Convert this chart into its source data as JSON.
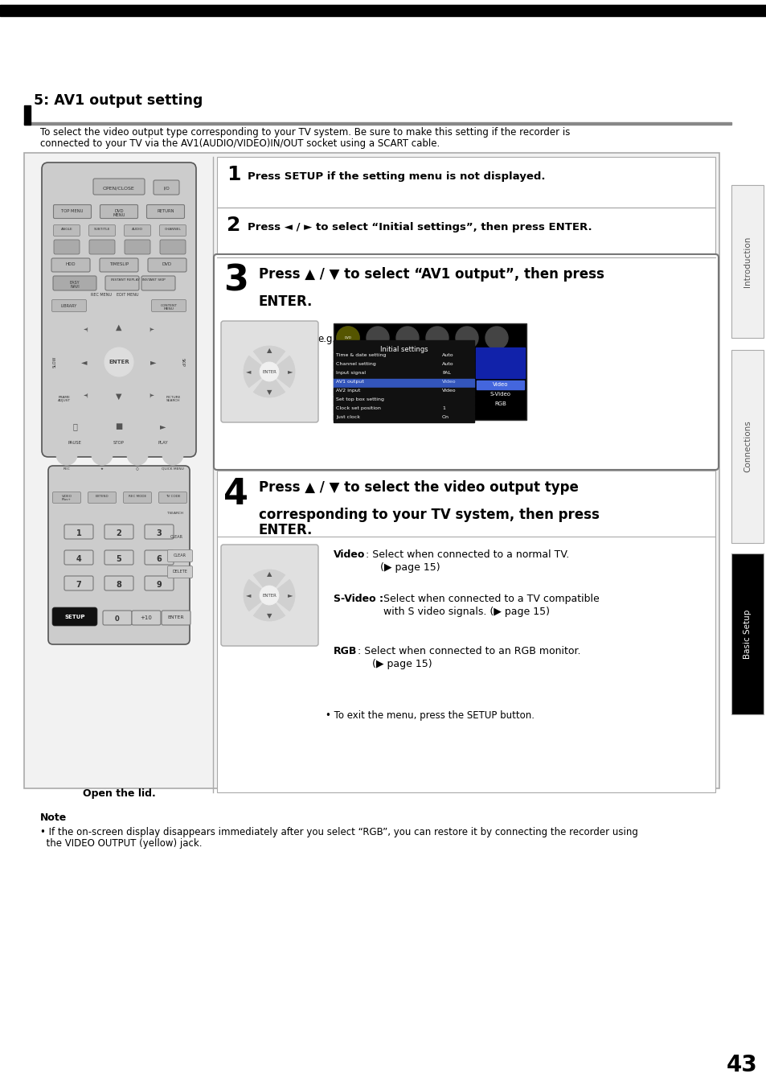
{
  "page_number": "43",
  "section_title": "5: AV1 output setting",
  "intro_text_1": "To select the video output type corresponding to your TV system. Be sure to make this setting if the recorder is",
  "intro_text_2": "connected to your TV via the AV1(AUDIO/VIDEO)IN/OUT socket using a SCART cable.",
  "step1_text": "Press SETUP if the setting menu is not displayed.",
  "step2_text": "Press ◄ / ► to select “Initial settings”, then press ENTER.",
  "step3_line1": "Press ▲ / ▼ to select “AV1 output”, then press",
  "step3_line2": "ENTER.",
  "step4_line1": "Press ▲ / ▼ to select the video output type",
  "step4_line2": "corresponding to your TV system, then press",
  "step4_line3": "ENTER.",
  "screen_rows": [
    [
      "Time & date setting",
      "Auto",
      false
    ],
    [
      "Channel setting",
      "Auto",
      false
    ],
    [
      "Input signal",
      "PAL",
      false
    ],
    [
      "AV1 output",
      "Video",
      true
    ],
    [
      "AV2 input",
      "Video",
      false
    ],
    [
      "Set top box setting",
      "",
      false
    ],
    [
      "Clock set position",
      "1",
      false
    ],
    [
      "Just clock",
      "On",
      false
    ]
  ],
  "screen_right": [
    "Video",
    "S-Video",
    "RGB"
  ],
  "video_desc1": ": Select when connected to a normal TV.",
  "video_desc2": "(▶ page 15)",
  "svideo_desc1": "Select when connected to a TV compatible",
  "svideo_desc2": "with S video signals. (▶ page 15)",
  "rgb_desc1": ": Select when connected to an RGB monitor.",
  "rgb_desc2": "(▶ page 15)",
  "exit_text": "• To exit the menu, press the SETUP button.",
  "open_lid": "Open the lid.",
  "note_title": "Note",
  "note_text1": "• If the on-screen display disappears immediately after you select “RGB”, you can restore it by connecting the recorder using",
  "note_text2": "  the VIDEO OUTPUT (yellow) jack.",
  "sidebar_labels": [
    "Introduction",
    "Connections",
    "Basic Setup"
  ],
  "sidebar_bg": [
    "#f0f0f0",
    "#f0f0f0",
    "#000000"
  ],
  "sidebar_fg": [
    "#555555",
    "#555555",
    "#ffffff"
  ]
}
